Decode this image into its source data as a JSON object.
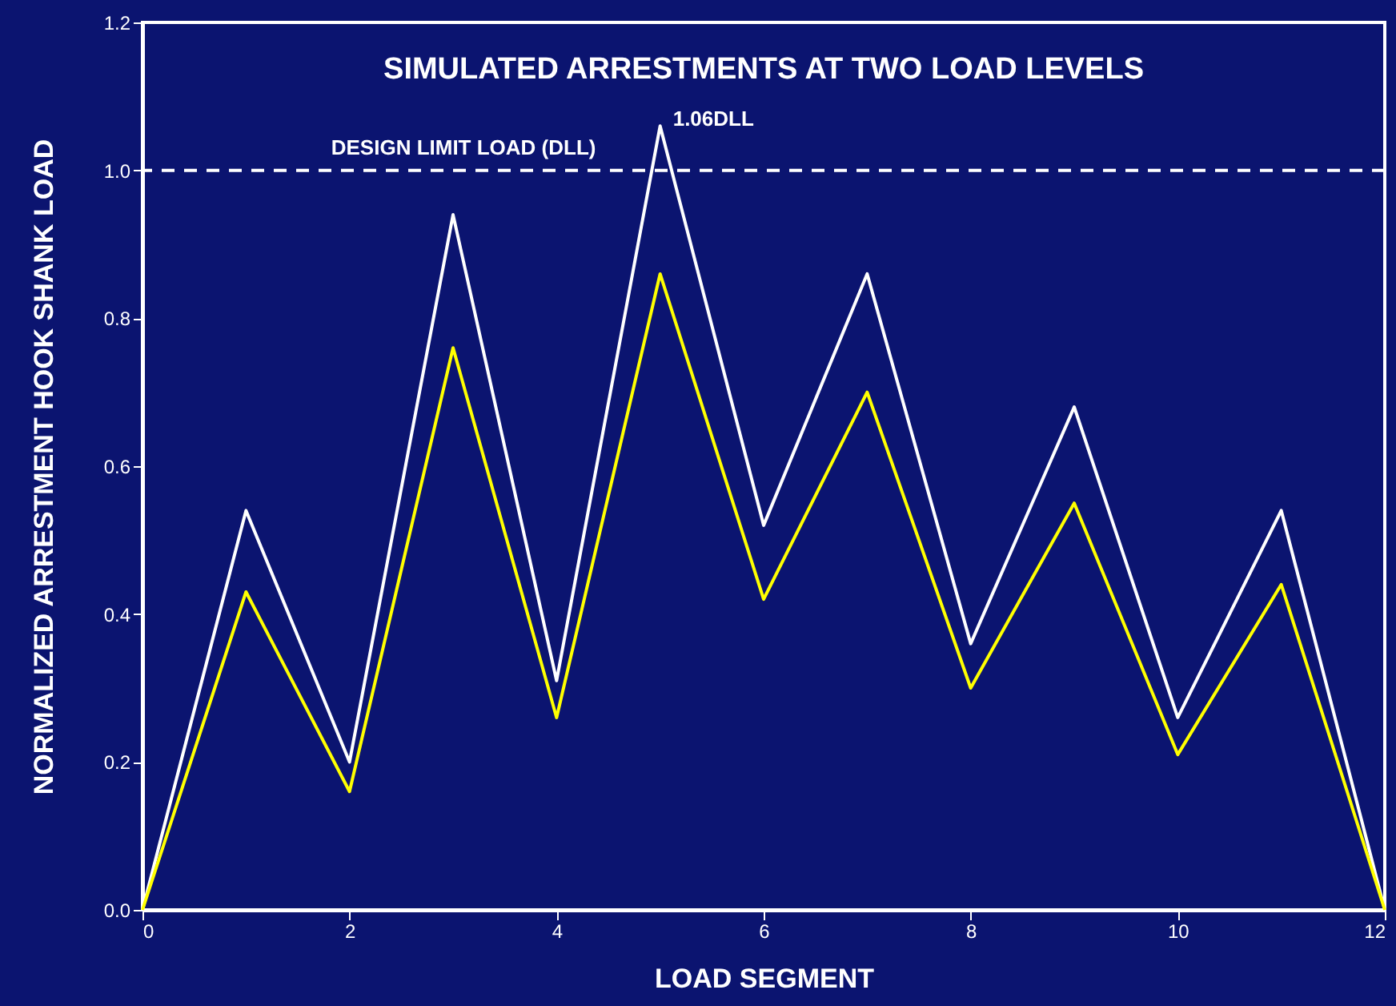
{
  "chart_data": {
    "type": "line",
    "title": "SIMULATED ARRESTMENTS AT TWO LOAD LEVELS",
    "xlabel": "LOAD SEGMENT",
    "ylabel": "NORMALIZED ARRESTMENT HOOK SHANK LOAD",
    "x": [
      0,
      1,
      2,
      3,
      4,
      5,
      6,
      7,
      8,
      9,
      10,
      11,
      12
    ],
    "series": [
      {
        "color": "#ffffff",
        "values": [
          0,
          0.54,
          0.2,
          0.94,
          0.31,
          1.06,
          0.52,
          0.86,
          0.36,
          0.68,
          0.26,
          0.54,
          0
        ]
      },
      {
        "color": "#ffff00",
        "values": [
          0,
          0.43,
          0.16,
          0.76,
          0.26,
          0.86,
          0.42,
          0.7,
          0.3,
          0.55,
          0.21,
          0.44,
          0
        ]
      }
    ],
    "xlim": [
      0,
      12
    ],
    "xticks": [
      0,
      2,
      4,
      6,
      8,
      10,
      12
    ],
    "ylim": [
      0,
      1.2
    ],
    "yticks": [
      {
        "value": 0,
        "label": "0.0"
      },
      0.2,
      0.4,
      0.6,
      0.8,
      {
        "value": 1,
        "label": "1.0"
      },
      1.2
    ],
    "ref_lines": [
      {
        "axis": "y",
        "value": 1,
        "label": "DESIGN LIMIT LOAD (DLL)",
        "color": "#ffffff",
        "line_style": "dashed"
      }
    ],
    "annotations": [
      {
        "text": "1.06DLL",
        "x": 5,
        "y": 1.06
      }
    ],
    "grid": false,
    "marker": "none",
    "line_style": "solid"
  }
}
